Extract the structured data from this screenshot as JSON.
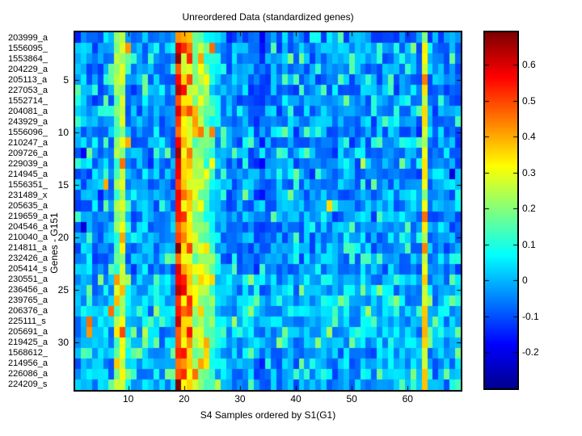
{
  "figure": {
    "background": "#ffffff"
  },
  "chart_data": {
    "type": "heatmap",
    "title": "Unreordered Data (standardized genes)",
    "xlabel": "S4 Samples ordered by S1(G1)",
    "ylabel": "Genes - G151",
    "n_rows": 34,
    "n_cols": 69,
    "row_labels": [
      "203999_a",
      "1556095_",
      "1553864_",
      "204229_a",
      "205113_a",
      "227053_a",
      "1552714_",
      "204081_a",
      "243929_a",
      "1556096_",
      "210247_a",
      "209726_a",
      "229039_a",
      "214945_a",
      "1556351_",
      "231489_x",
      "205635_a",
      "219659_a",
      "204546_a",
      "210040_a",
      "214811_a",
      "232426_a",
      "205414_s",
      "230551_a",
      "236456_a",
      "239765_a",
      "206376_a",
      "225111_s",
      "205691_a",
      "219425_a",
      "1568612_",
      "214956_a",
      "226086_a",
      "224209_s"
    ],
    "x_ticks": [
      10,
      20,
      30,
      40,
      50,
      60
    ],
    "y_ticks": [
      5,
      10,
      15,
      20,
      25,
      30
    ],
    "value_range": [
      -0.3,
      0.69
    ],
    "colorbar_ticks": [
      "0.6",
      "0.5",
      "0.4",
      "0.3",
      "0.2",
      "0.1",
      "0",
      "-0.1",
      "-0.2"
    ],
    "colorbar_tick_values": [
      0.6,
      0.5,
      0.4,
      0.3,
      0.2,
      0.1,
      0,
      -0.1,
      -0.2
    ],
    "colormap": {
      "name": "jet",
      "stops": [
        [
          0,
          [
            0,
            0,
            143
          ]
        ],
        [
          0.125,
          [
            0,
            0,
            255
          ]
        ],
        [
          0.375,
          [
            0,
            255,
            255
          ]
        ],
        [
          0.625,
          [
            255,
            255,
            0
          ]
        ],
        [
          0.875,
          [
            255,
            0,
            0
          ]
        ],
        [
          1,
          [
            128,
            0,
            0
          ]
        ]
      ]
    },
    "column_profile": [
      -0.05,
      -0.03,
      -0.04,
      -0.06,
      -0.04,
      -0.03,
      -0.05,
      0.17,
      0.27,
      -0.02,
      -0.05,
      -0.04,
      -0.01,
      -0.06,
      -0.04,
      -0.05,
      -0.03,
      -0.04,
      0.52,
      0.34,
      0.33,
      0.22,
      0.24,
      0.17,
      0.1,
      0.02,
      -0.04,
      -0.05,
      -0.03,
      -0.05,
      -0.02,
      -0.05,
      -0.06,
      -0.09,
      -0.05,
      -0.03,
      -0.05,
      -0.04,
      -0.02,
      -0.05,
      -0.04,
      -0.03,
      -0.05,
      -0.04,
      -0.02,
      -0.03,
      -0.05,
      -0.04,
      -0.03,
      -0.05,
      -0.04,
      -0.01,
      -0.03,
      -0.05,
      -0.04,
      -0.03,
      -0.02,
      -0.05,
      -0.03,
      -0.04,
      -0.02,
      -0.06,
      0.28,
      -0.03,
      -0.05,
      -0.02,
      -0.04,
      -0.05,
      -0.05
    ],
    "row_bias": [
      -0.02,
      0,
      0,
      0,
      0,
      0,
      0,
      0,
      0,
      0,
      0,
      0,
      0,
      0,
      0,
      0,
      0,
      0,
      0,
      0,
      0,
      0,
      0,
      0.04,
      0.04,
      0.04,
      0.04,
      0.04,
      0.04,
      0.04,
      0.02,
      0.02,
      0.02,
      0.02
    ],
    "hot_cells": [
      [
        2,
        10,
        0.42
      ],
      [
        11,
        10,
        0.4
      ],
      [
        1,
        20,
        0.4
      ],
      [
        2,
        19,
        0.6
      ],
      [
        3,
        19,
        0.68
      ],
      [
        11,
        19,
        0.58
      ],
      [
        23,
        19,
        0.6
      ],
      [
        27,
        19,
        0.55
      ],
      [
        2,
        25,
        0.46
      ],
      [
        10,
        25,
        0.44
      ],
      [
        15,
        6,
        0.4
      ],
      [
        24,
        8,
        0.42
      ],
      [
        27,
        7,
        0.46
      ],
      [
        28,
        3,
        0.46
      ],
      [
        29,
        3,
        0.42
      ],
      [
        5,
        63,
        0.45
      ],
      [
        17,
        46,
        0.35
      ],
      [
        13,
        52,
        0.25
      ],
      [
        1,
        1,
        -0.15
      ],
      [
        12,
        2,
        -0.18
      ],
      [
        19,
        2,
        -0.22
      ],
      [
        16,
        5,
        -0.15
      ],
      [
        13,
        34,
        -0.18
      ],
      [
        14,
        68,
        -0.22
      ]
    ],
    "noise": {
      "seed_a": 127.1,
      "seed_b": 311.7,
      "seed_c": 43758.5453,
      "pop_threshold": 0.86,
      "pop_base": 0.1,
      "pop_gain": 0.9,
      "spread": 0.17
    }
  }
}
